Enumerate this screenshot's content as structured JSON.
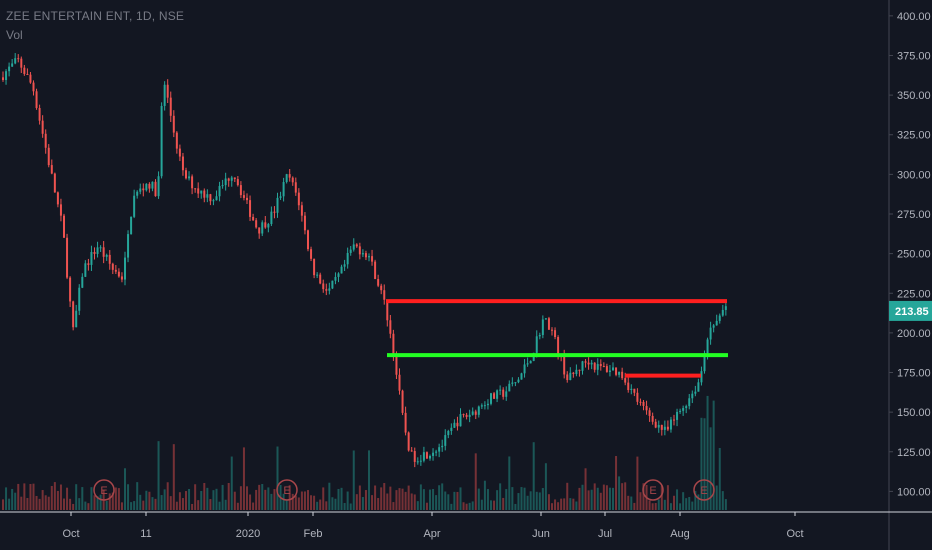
{
  "header": {
    "title": "ZEE ENTERTAIN ENT, 1D, NSE",
    "volume_label": "Vol"
  },
  "colors": {
    "background": "#131722",
    "up": "#26a69a",
    "down": "#ef5350",
    "axis_text": "#b2b5be",
    "resistance_line": "#ff1f1f",
    "support_line": "#22ff22",
    "price_badge": "#26a69a",
    "earnings_marker": "#a7464a"
  },
  "chart_data": {
    "type": "candlestick",
    "symbol": "ZEE ENTERTAIN ENT",
    "interval": "1D",
    "exchange": "NSE",
    "ylim": [
      87,
      410
    ],
    "y_ticks": [
      "100.00",
      "125.00",
      "150.00",
      "175.00",
      "200.00",
      "225.00",
      "250.00",
      "275.00",
      "300.00",
      "325.00",
      "350.00",
      "375.00",
      "400.00"
    ],
    "x_ticks": [
      "Oct",
      "11",
      "2020",
      "Feb",
      "Apr",
      "Jun",
      "Jul",
      "Aug",
      "Oct"
    ],
    "current_price": "213.85",
    "volume_label": "Vol",
    "earnings_marker_label": "E",
    "earnings_marker_count": 5,
    "trend_lines": [
      {
        "type": "resistance",
        "color": "red",
        "price": 220,
        "from": "Feb",
        "to": "Aug"
      },
      {
        "type": "support",
        "color": "green",
        "price": 186,
        "from": "Feb",
        "to": "Aug"
      },
      {
        "type": "resistance",
        "color": "red",
        "price": 173,
        "from": "Jul",
        "to": "Aug"
      }
    ],
    "price_path": [
      [
        0,
        360
      ],
      [
        20,
        372
      ],
      [
        35,
        355
      ],
      [
        50,
        310
      ],
      [
        65,
        265
      ],
      [
        75,
        200
      ],
      [
        85,
        240
      ],
      [
        100,
        255
      ],
      [
        115,
        240
      ],
      [
        125,
        235
      ],
      [
        135,
        285
      ],
      [
        150,
        295
      ],
      [
        160,
        288
      ],
      [
        165,
        362
      ],
      [
        175,
        330
      ],
      [
        185,
        300
      ],
      [
        200,
        290
      ],
      [
        215,
        285
      ],
      [
        235,
        302
      ],
      [
        248,
        282
      ],
      [
        260,
        265
      ],
      [
        275,
        275
      ],
      [
        290,
        300
      ],
      [
        300,
        285
      ],
      [
        315,
        240
      ],
      [
        330,
        225
      ],
      [
        345,
        240
      ],
      [
        355,
        255
      ],
      [
        370,
        250
      ],
      [
        380,
        232
      ],
      [
        388,
        215
      ],
      [
        395,
        190
      ],
      [
        405,
        145
      ],
      [
        413,
        122
      ],
      [
        420,
        122
      ],
      [
        432,
        125
      ],
      [
        445,
        130
      ],
      [
        460,
        145
      ],
      [
        475,
        150
      ],
      [
        490,
        158
      ],
      [
        505,
        162
      ],
      [
        520,
        170
      ],
      [
        535,
        188
      ],
      [
        545,
        208
      ],
      [
        552,
        205
      ],
      [
        562,
        185
      ],
      [
        570,
        170
      ],
      [
        580,
        177
      ],
      [
        590,
        183
      ],
      [
        600,
        178
      ],
      [
        615,
        177
      ],
      [
        625,
        173
      ],
      [
        635,
        162
      ],
      [
        645,
        152
      ],
      [
        655,
        145
      ],
      [
        668,
        137
      ],
      [
        678,
        147
      ],
      [
        690,
        158
      ],
      [
        700,
        168
      ],
      [
        706,
        182
      ],
      [
        712,
        202
      ],
      [
        720,
        208
      ],
      [
        725,
        214
      ]
    ]
  }
}
